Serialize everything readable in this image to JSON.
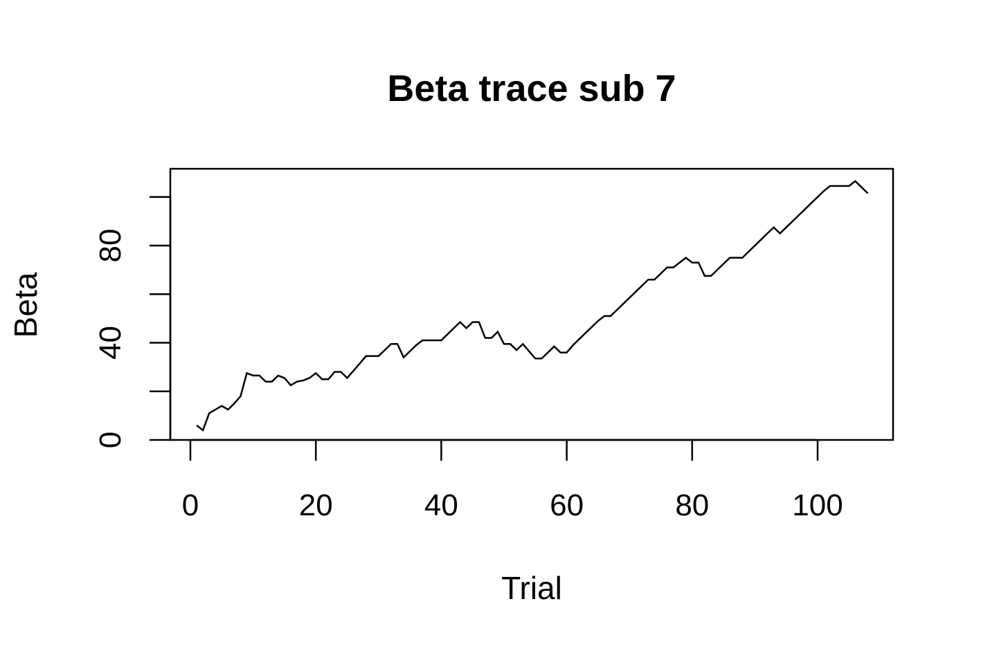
{
  "chart_data": {
    "type": "line",
    "title": "Beta trace sub 7",
    "xlabel": "Trial",
    "ylabel": "Beta",
    "xlim": [
      -3.3,
      112.3
    ],
    "ylim": [
      0,
      111
    ],
    "x_ticks": [
      0,
      20,
      40,
      60,
      80,
      100
    ],
    "y_ticks": [
      0,
      20,
      40,
      60,
      80,
      100
    ],
    "y_tick_labels": [
      "0",
      "",
      "40",
      "",
      "80",
      ""
    ],
    "grid": false,
    "legend": "none",
    "line_color": "#000000",
    "series": [
      {
        "x": [
          1,
          2,
          3,
          4,
          5,
          6,
          7,
          8,
          9,
          10,
          11,
          12,
          13,
          14,
          15,
          16,
          17,
          18,
          19,
          20,
          21,
          22,
          23,
          24,
          25,
          26,
          27,
          28,
          29,
          30,
          31,
          32,
          33,
          34,
          35,
          36,
          37,
          38,
          39,
          40,
          41,
          42,
          43,
          44,
          45,
          46,
          47,
          48,
          49,
          50,
          51,
          52,
          53,
          54,
          55,
          56,
          57,
          58,
          59,
          60,
          61,
          62,
          63,
          64,
          65,
          66,
          67,
          68,
          69,
          70,
          71,
          72,
          73,
          74,
          75,
          76,
          77,
          78,
          79,
          80,
          81,
          82,
          83,
          84,
          85,
          86,
          87,
          88,
          89,
          90,
          91,
          92,
          93,
          94,
          95,
          96,
          97,
          98,
          99,
          100,
          101,
          102,
          103,
          104,
          105,
          106,
          107,
          108
        ],
        "values": [
          6,
          4,
          11,
          12.5,
          14,
          12.5,
          15,
          18,
          27.5,
          26.5,
          26.5,
          24,
          24,
          26.5,
          25.5,
          22.5,
          24,
          24.5,
          25.5,
          27.5,
          25,
          25,
          28,
          28,
          25.5,
          28.5,
          31.5,
          34.5,
          34.5,
          34.5,
          37,
          39.5,
          39.5,
          34,
          36.5,
          39,
          41,
          41,
          41,
          41,
          43.5,
          46,
          48.5,
          46,
          48.5,
          48.5,
          42,
          42,
          44.5,
          39.5,
          39.5,
          37,
          39.5,
          36.5,
          33.5,
          33.5,
          36,
          38.5,
          36,
          36,
          39,
          41.5,
          44,
          46.5,
          49,
          51,
          51,
          53.5,
          56,
          58.5,
          61,
          63.5,
          66,
          66,
          68.5,
          71,
          71,
          73,
          75,
          73,
          73,
          67.5,
          67.5,
          70,
          72.5,
          75,
          75,
          75,
          77.5,
          80,
          82.5,
          85,
          87.5,
          85,
          87.5,
          90,
          92.5,
          95,
          97.5,
          100,
          102.5,
          104.5,
          104.5,
          104.5,
          104.5,
          106.5,
          104,
          101.5
        ]
      }
    ]
  }
}
